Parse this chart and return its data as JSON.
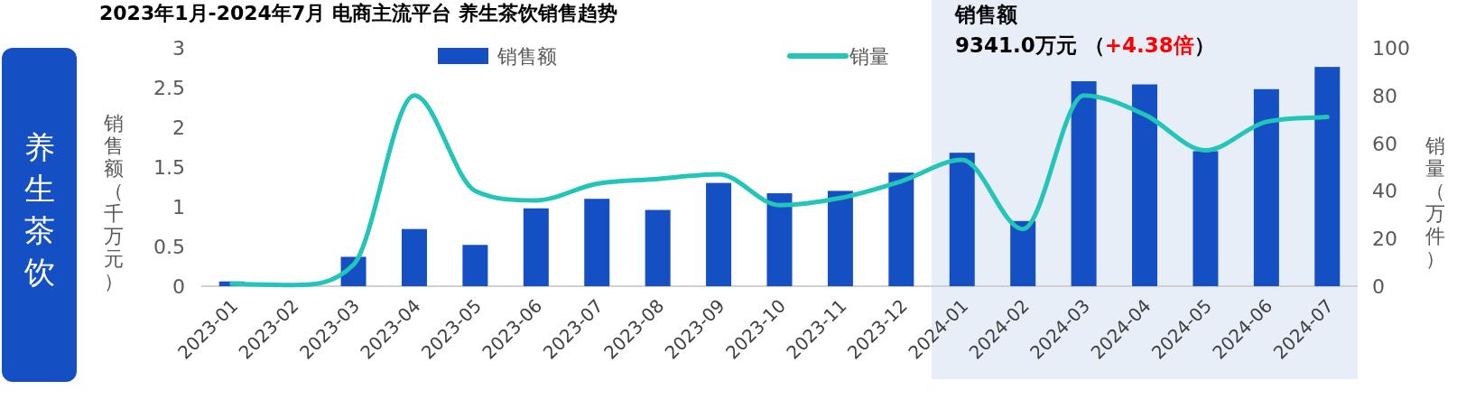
{
  "chart_data": {
    "type": "bar",
    "title": "2023年1月-2024年7月 电商主流平台 养生茶饮销售趋势",
    "ylabel": "销售额（千万元）",
    "y2label": "销量（万件）",
    "categories": [
      "2023-01",
      "2023-02",
      "2023-03",
      "2023-04",
      "2023-05",
      "2023-06",
      "2023-07",
      "2023-08",
      "2023-09",
      "2023-10",
      "2023-11",
      "2023-12",
      "2024-01",
      "2024-02",
      "2024-03",
      "2024-04",
      "2024-05",
      "2024-06",
      "2024-07"
    ],
    "series": [
      {
        "name": "销售额",
        "color": "#1450c4",
        "values": [
          0.06,
          null,
          0.37,
          0.72,
          0.52,
          0.98,
          1.1,
          0.96,
          1.3,
          1.17,
          1.2,
          1.43,
          1.68,
          0.82,
          2.58,
          2.54,
          1.7,
          2.48,
          2.76
        ]
      },
      {
        "name": "销量",
        "type": "line",
        "axis": "y2",
        "color": "#22c5b8",
        "values": [
          1,
          0.5,
          9,
          80,
          40,
          36,
          43,
          45,
          47,
          34,
          37,
          44,
          53,
          24,
          80,
          72,
          57,
          69,
          71
        ]
      }
    ],
    "ylim": [
      0,
      3
    ],
    "yticks": [
      0,
      0.5,
      1,
      1.5,
      2,
      2.5,
      3
    ],
    "y2lim": [
      0,
      100
    ],
    "y2ticks": [
      0,
      20,
      40,
      60,
      80,
      100
    ],
    "bands": [
      {
        "axis": "x",
        "from": "2024-01",
        "to": "2024-07",
        "color": "#e8eef8"
      }
    ],
    "annotations": [
      "养生茶饮",
      "销售额",
      "9341.0万元",
      "（+4.38倍）"
    ],
    "legend": "top",
    "grid": false,
    "marker": "none",
    "line_style": "solid"
  }
}
